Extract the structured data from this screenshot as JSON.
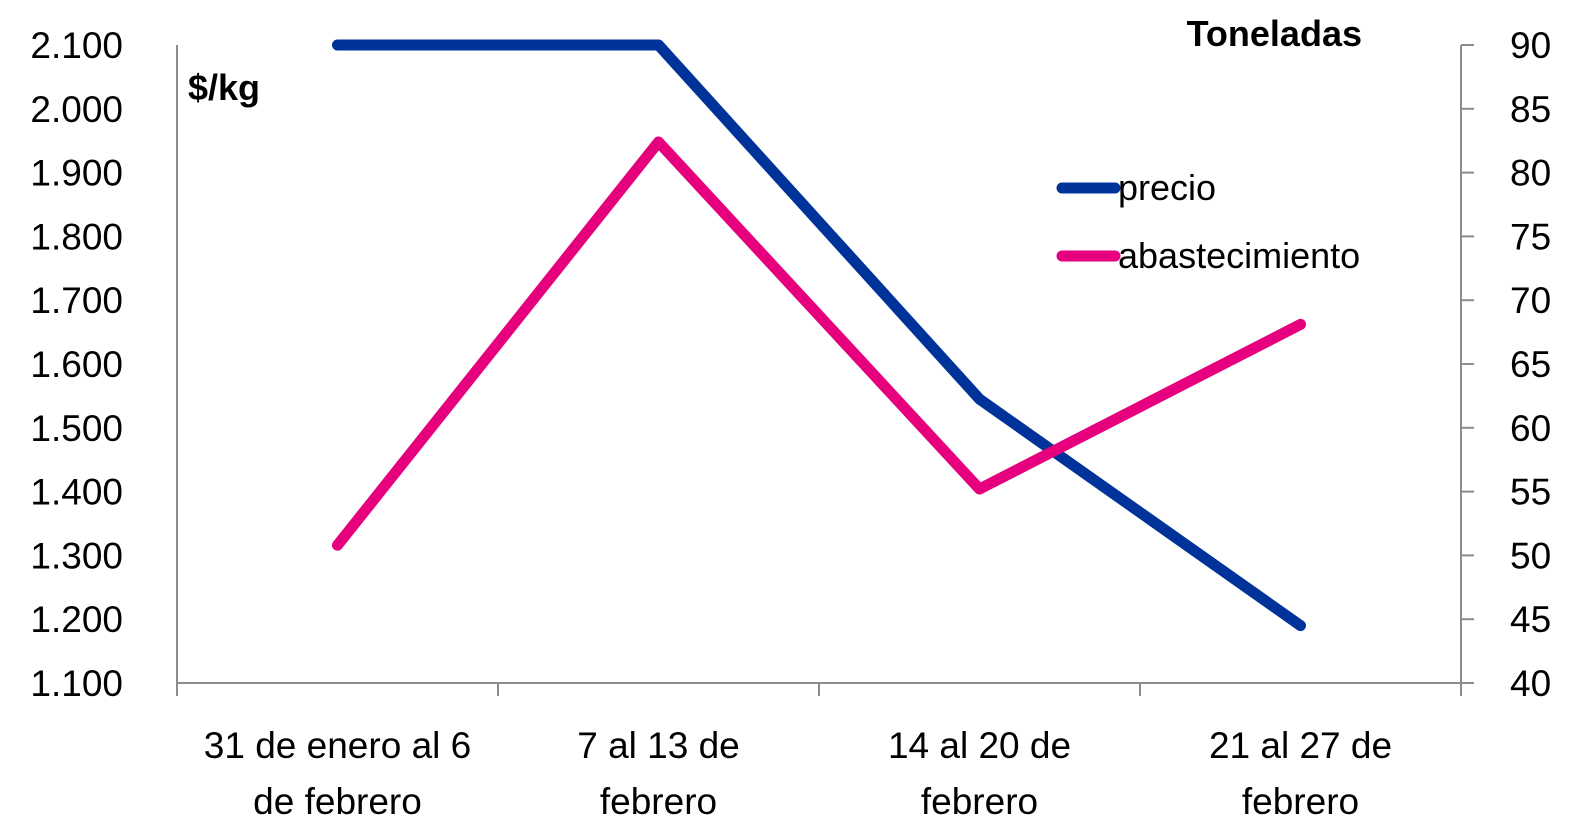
{
  "chart_data": {
    "type": "line",
    "categories": [
      [
        "31 de enero al 6",
        "de febrero"
      ],
      [
        "7 al 13 de",
        "febrero"
      ],
      [
        "14 al 20 de",
        "febrero"
      ],
      [
        "21 al 27 de",
        "febrero"
      ]
    ],
    "left_axis": {
      "title": "$/kg",
      "ylim": [
        1100,
        2100
      ],
      "ticks": [
        1100,
        1200,
        1300,
        1400,
        1500,
        1600,
        1700,
        1800,
        1900,
        2000,
        2100
      ],
      "tick_labels": [
        "1.100",
        "1.200",
        "1.300",
        "1.400",
        "1.500",
        "1.600",
        "1.700",
        "1.800",
        "1.900",
        "2.000",
        "2.100"
      ]
    },
    "right_axis": {
      "title": "Toneladas",
      "ylim": [
        40,
        90
      ],
      "ticks": [
        40,
        45,
        50,
        55,
        60,
        65,
        70,
        75,
        80,
        85,
        90
      ],
      "tick_labels": [
        "40",
        "45",
        "50",
        "55",
        "60",
        "65",
        "70",
        "75",
        "80",
        "85",
        "90"
      ]
    },
    "series": [
      {
        "name": "precio",
        "axis": "left",
        "color": "#003399",
        "values": [
          2100,
          2100,
          1545,
          1190
        ]
      },
      {
        "name": "abastecimiento",
        "axis": "right",
        "color": "#e6007e",
        "values": [
          50.8,
          82.4,
          55.2,
          68.1
        ]
      }
    ],
    "legend_position": "upper-right",
    "grid": false
  }
}
